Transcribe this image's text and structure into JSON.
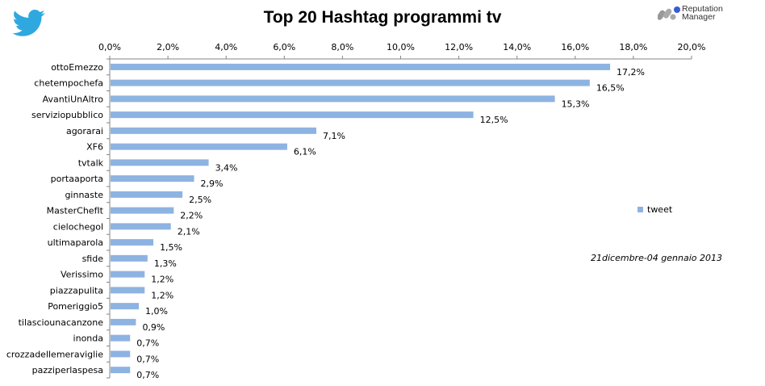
{
  "chart_data": {
    "type": "bar",
    "orientation": "horizontal",
    "title": "Top 20 Hashtag programmi tv",
    "categories": [
      "ottoEmezzo",
      "chetempochefa",
      "AvantiUnAltro",
      "serviziopubblico",
      "agorarai",
      "XF6",
      "tvtalk",
      "portaaporta",
      "ginnaste",
      "MasterChefIt",
      "cielochegol",
      "ultimaparola",
      "sfide",
      "Verissimo",
      "piazzapulita",
      "Pomeriggio5",
      "tilasciounacanzone",
      "inonda",
      "crozzadellemeraviglie",
      "pazziperlaspesa"
    ],
    "values": [
      17.2,
      16.5,
      15.3,
      12.5,
      7.1,
      6.1,
      3.4,
      2.9,
      2.5,
      2.2,
      2.1,
      1.5,
      1.3,
      1.2,
      1.2,
      1.0,
      0.9,
      0.7,
      0.7,
      0.7
    ],
    "data_labels": [
      "17,2%",
      "16,5%",
      "15,3%",
      "12,5%",
      "7,1%",
      "6,1%",
      "3,4%",
      "2,9%",
      "2,5%",
      "2,2%",
      "2,1%",
      "1,5%",
      "1,3%",
      "1,2%",
      "1,2%",
      "1,0%",
      "0,9%",
      "0,7%",
      "0,7%",
      "0,7%"
    ],
    "xticks": [
      0,
      2,
      4,
      6,
      8,
      10,
      12,
      14,
      16,
      18,
      20
    ],
    "xtick_labels": [
      "0,0%",
      "2,0%",
      "4,0%",
      "6,0%",
      "8,0%",
      "10,0%",
      "12,0%",
      "14,0%",
      "16,0%",
      "18,0%",
      "20,0%"
    ],
    "xlim": [
      0,
      20
    ],
    "xaxis_position": "top",
    "grid": false,
    "legend": {
      "entries": [
        "tweet"
      ],
      "placement": "right"
    },
    "series_color": "#8db3e2",
    "annotation": "21dicembre-04 gennaio 2013"
  },
  "logo": {
    "line1": "Reputation",
    "line2": "Manager"
  },
  "brand_color": "#1da1f2"
}
